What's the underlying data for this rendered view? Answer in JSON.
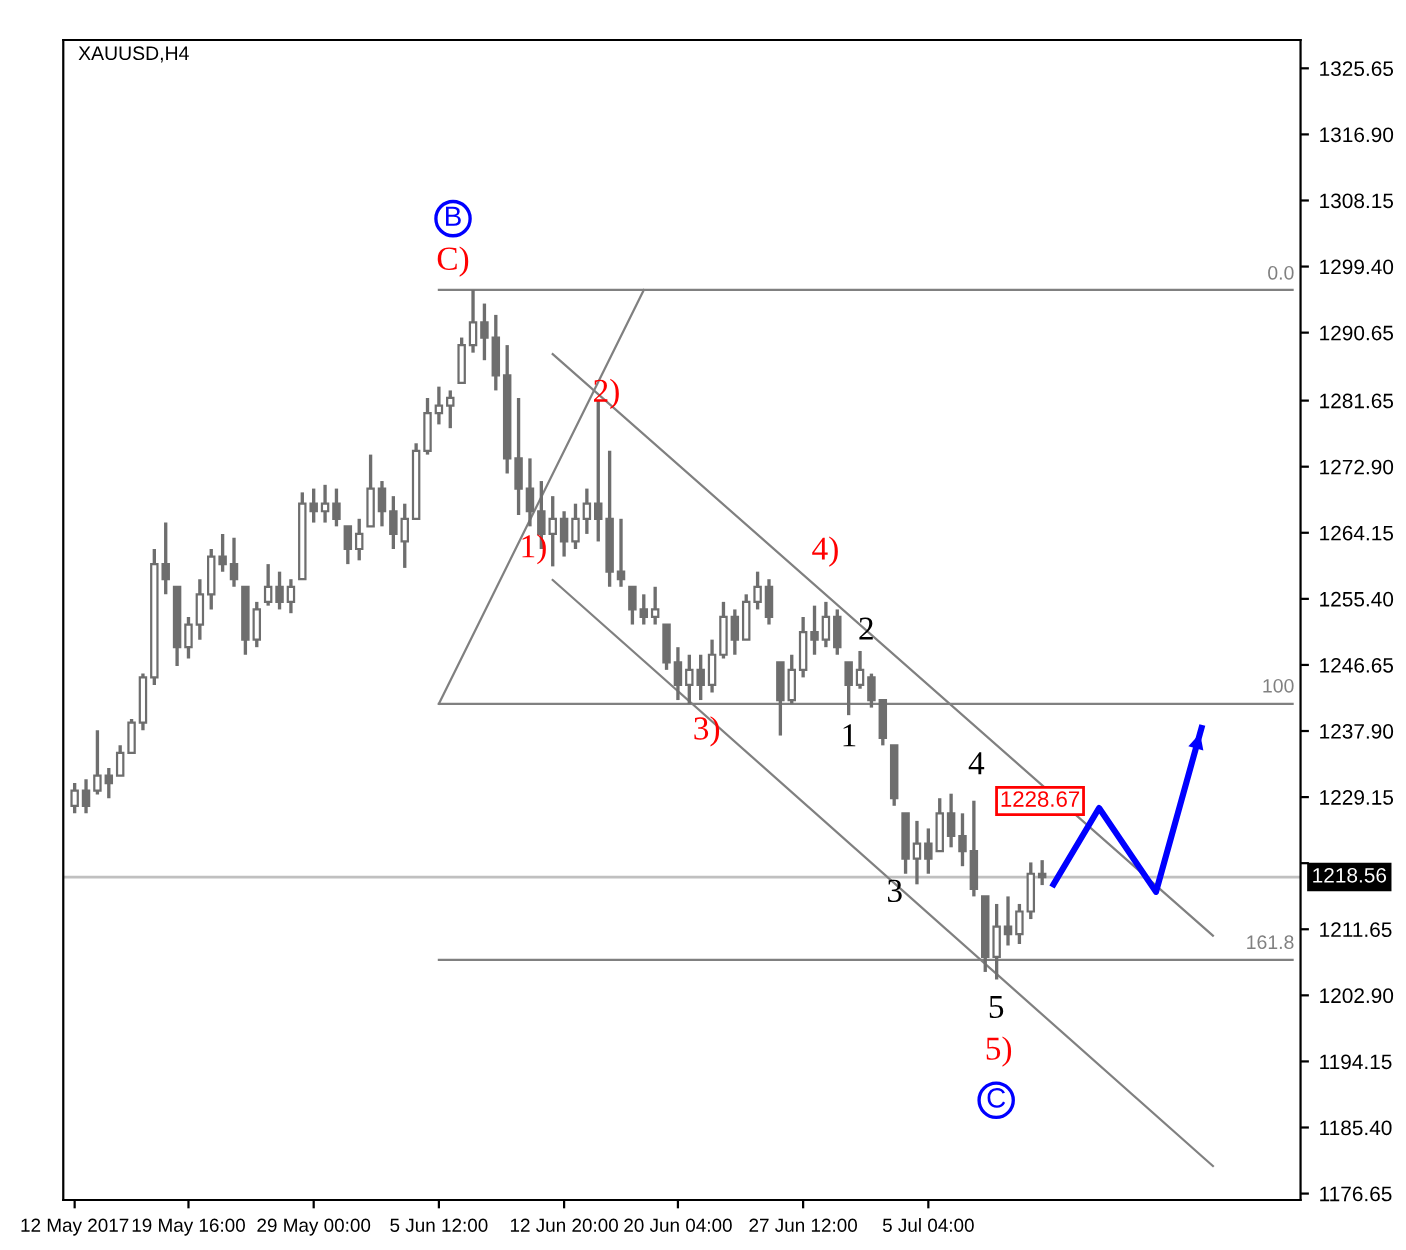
{
  "chart_data": {
    "type": "candlestick",
    "title": "XAUUSD,H4",
    "categories": [
      "12 May 2017",
      null,
      null,
      null,
      null,
      null,
      null,
      null,
      null,
      null,
      "19 May 16:00",
      null,
      null,
      null,
      null,
      null,
      null,
      null,
      null,
      null,
      null,
      "29 May 00:00",
      null,
      null,
      null,
      null,
      null,
      null,
      null,
      null,
      null,
      null,
      "5 Jun 12:00",
      null,
      null,
      null,
      null,
      null,
      null,
      null,
      null,
      null,
      null,
      "12 Jun 20:00",
      null,
      null,
      null,
      null,
      null,
      null,
      null,
      null,
      null,
      "20 Jun 04:00",
      null,
      null,
      null,
      null,
      null,
      null,
      null,
      null,
      null,
      null,
      "27 Jun 12:00",
      null,
      null,
      null,
      null,
      null,
      null,
      null,
      null,
      null,
      null,
      "5 Jul 04:00",
      null,
      null,
      null,
      null,
      null,
      null,
      null,
      null,
      null,
      null,
      null,
      null,
      null,
      null,
      null,
      null,
      null,
      null,
      null,
      null,
      null,
      null,
      null,
      null,
      null,
      null,
      null,
      null,
      null,
      null,
      null,
      null
    ],
    "ohlc": [
      [
        1228,
        1231,
        1227,
        1230
      ],
      [
        1230,
        1231.5,
        1227,
        1228
      ],
      [
        1230,
        1238,
        1229.5,
        1232
      ],
      [
        1232,
        1233,
        1229,
        1231
      ],
      [
        1232,
        1236,
        1232,
        1235
      ],
      [
        1235,
        1239.5,
        1235,
        1239
      ],
      [
        1239,
        1245.5,
        1238,
        1245
      ],
      [
        1245,
        1262,
        1244,
        1260
      ],
      [
        1260,
        1265.5,
        1256,
        1258
      ],
      [
        1257,
        1257,
        1246.5,
        1249
      ],
      [
        1249,
        1253,
        1247.5,
        1252
      ],
      [
        1252,
        1258,
        1250,
        1256
      ],
      [
        1256,
        1262,
        1254,
        1261
      ],
      [
        1261,
        1264,
        1259,
        1260
      ],
      [
        1260,
        1263.5,
        1257,
        1258
      ],
      [
        1257,
        1257,
        1248,
        1250
      ],
      [
        1250,
        1255,
        1249,
        1254
      ],
      [
        1255,
        1260,
        1254.5,
        1257
      ],
      [
        1257,
        1259,
        1254,
        1255
      ],
      [
        1255,
        1258,
        1253.5,
        1257
      ],
      [
        1258,
        1269.5,
        1258,
        1268
      ],
      [
        1268,
        1270,
        1265.5,
        1267
      ],
      [
        1267,
        1270.5,
        1265.5,
        1268
      ],
      [
        1268,
        1270,
        1265,
        1266
      ],
      [
        1265,
        1265,
        1260,
        1262
      ],
      [
        1262,
        1266,
        1260.5,
        1264
      ],
      [
        1265,
        1274.5,
        1265,
        1270
      ],
      [
        1270,
        1271,
        1265,
        1267
      ],
      [
        1267,
        1269,
        1262,
        1264
      ],
      [
        1263,
        1268,
        1259.5,
        1266
      ],
      [
        1266,
        1276,
        1266,
        1275
      ],
      [
        1275,
        1282,
        1274.5,
        1280
      ],
      [
        1280,
        1283.5,
        1278.5,
        1281
      ],
      [
        1281,
        1283,
        1278,
        1282
      ],
      [
        1284,
        1290,
        1284,
        1289
      ],
      [
        1289,
        1296.3,
        1288,
        1292
      ],
      [
        1292,
        1294.5,
        1287,
        1290
      ],
      [
        1290,
        1293,
        1283,
        1285
      ],
      [
        1285,
        1289,
        1272,
        1274
      ],
      [
        1274,
        1282,
        1266.5,
        1270
      ],
      [
        1270,
        1274,
        1265,
        1267
      ],
      [
        1267,
        1271,
        1262,
        1264
      ],
      [
        1264,
        1269,
        1259.7,
        1266
      ],
      [
        1266,
        1267,
        1261,
        1263
      ],
      [
        1263,
        1268,
        1262,
        1266
      ],
      [
        1266,
        1270,
        1264,
        1268
      ],
      [
        1268,
        1281.7,
        1263,
        1266
      ],
      [
        1266,
        1275,
        1257,
        1259
      ],
      [
        1259,
        1266,
        1257,
        1258
      ],
      [
        1257,
        1257,
        1252,
        1254
      ],
      [
        1254,
        1256,
        1252,
        1253
      ],
      [
        1253,
        1257,
        1252,
        1254
      ],
      [
        1252,
        1252,
        1246,
        1247
      ],
      [
        1247,
        1249,
        1242,
        1244
      ],
      [
        1244,
        1248,
        1241.5,
        1246
      ],
      [
        1246,
        1248,
        1242,
        1244
      ],
      [
        1244,
        1250,
        1243,
        1248
      ],
      [
        1248,
        1255,
        1247.5,
        1253
      ],
      [
        1253,
        1254,
        1248,
        1250
      ],
      [
        1250,
        1256,
        1250,
        1255
      ],
      [
        1255,
        1259,
        1254,
        1257
      ],
      [
        1257,
        1258,
        1252,
        1253
      ],
      [
        1247,
        1247,
        1237.3,
        1242
      ],
      [
        1242,
        1248,
        1241.5,
        1246
      ],
      [
        1246,
        1253,
        1245,
        1251
      ],
      [
        1251,
        1254.5,
        1248,
        1250
      ],
      [
        1250,
        1255,
        1249,
        1253
      ],
      [
        1253,
        1254,
        1248,
        1249
      ],
      [
        1247,
        1247,
        1240,
        1244
      ],
      [
        1244,
        1248.5,
        1243.5,
        1246
      ],
      [
        1245,
        1245.5,
        1241,
        1242
      ],
      [
        1242,
        1242,
        1236,
        1237
      ],
      [
        1236,
        1236,
        1228,
        1229
      ],
      [
        1227,
        1227,
        1219,
        1221
      ],
      [
        1221,
        1226,
        1217.6,
        1223
      ],
      [
        1223,
        1225,
        1219,
        1221
      ],
      [
        1222,
        1229,
        1222,
        1227
      ],
      [
        1227,
        1229.6,
        1222.5,
        1224
      ],
      [
        1224,
        1227,
        1220,
        1222
      ],
      [
        1222,
        1228.67,
        1216,
        1217
      ],
      [
        1216,
        1216,
        1206,
        1208
      ],
      [
        1208,
        1215,
        1205,
        1212
      ],
      [
        1212,
        1216,
        1209.5,
        1211
      ],
      [
        1211,
        1215,
        1209.7,
        1214
      ],
      [
        1214,
        1220.5,
        1213,
        1219
      ],
      [
        1219,
        1220.8,
        1217.5,
        1218.56
      ],
      null,
      null,
      null,
      null,
      null,
      null,
      null,
      null,
      null,
      null,
      null,
      null,
      null,
      null,
      null,
      null,
      null,
      null,
      null,
      null,
      null,
      null
    ],
    "color": "#6e6e6e",
    "series": [
      {
        "type": "line",
        "color": "#808080",
        "values": [
          null,
          null,
          null,
          null,
          null,
          null,
          null,
          null,
          null,
          null,
          null,
          null,
          null,
          null,
          null,
          null,
          null,
          null,
          null,
          null,
          null,
          null,
          null,
          null,
          null,
          null,
          null,
          null,
          null,
          null,
          null,
          null,
          1296.3,
          null,
          null,
          null,
          null,
          null,
          null,
          null,
          null,
          null,
          null,
          null,
          null,
          null,
          null,
          null,
          null,
          null,
          null,
          null,
          null,
          null,
          null,
          null,
          null,
          null,
          null,
          null,
          null,
          null,
          null,
          null,
          null,
          null,
          null,
          null,
          null,
          null,
          null,
          null,
          null,
          null,
          null,
          null,
          null,
          null,
          null,
          null,
          null,
          null,
          null,
          null,
          null,
          null,
          null,
          null,
          null,
          null,
          null,
          null,
          null,
          null,
          null,
          null,
          null,
          null,
          null,
          null,
          null,
          null,
          null,
          null,
          null,
          null,
          null,
          1296.3
        ]
      },
      {
        "type": "line",
        "color": "#808080",
        "values": [
          null,
          null,
          null,
          null,
          null,
          null,
          null,
          null,
          null,
          null,
          null,
          null,
          null,
          null,
          null,
          null,
          null,
          null,
          null,
          null,
          null,
          null,
          null,
          null,
          null,
          null,
          null,
          null,
          null,
          null,
          null,
          null,
          1241.5,
          null,
          null,
          null,
          null,
          null,
          null,
          null,
          null,
          null,
          null,
          null,
          null,
          null,
          null,
          null,
          null,
          null,
          null,
          null,
          null,
          null,
          null,
          null,
          null,
          null,
          null,
          null,
          null,
          null,
          null,
          null,
          null,
          null,
          null,
          null,
          null,
          null,
          null,
          null,
          null,
          null,
          null,
          null,
          null,
          null,
          null,
          null,
          null,
          null,
          null,
          null,
          null,
          null,
          null,
          null,
          null,
          null,
          null,
          null,
          null,
          null,
          null,
          null,
          null,
          null,
          null,
          null,
          null,
          null,
          null,
          null,
          null,
          null,
          null,
          1241.5
        ]
      },
      {
        "type": "line",
        "color": "#808080",
        "values": [
          null,
          null,
          null,
          null,
          null,
          null,
          null,
          null,
          null,
          null,
          null,
          null,
          null,
          null,
          null,
          null,
          null,
          null,
          null,
          null,
          null,
          null,
          null,
          null,
          null,
          null,
          null,
          null,
          null,
          null,
          null,
          null,
          1207.6,
          null,
          null,
          null,
          null,
          null,
          null,
          null,
          null,
          null,
          null,
          null,
          null,
          null,
          null,
          null,
          null,
          null,
          null,
          null,
          null,
          null,
          null,
          null,
          null,
          null,
          null,
          null,
          null,
          null,
          null,
          null,
          null,
          null,
          null,
          null,
          null,
          null,
          null,
          null,
          null,
          null,
          null,
          null,
          null,
          null,
          null,
          null,
          null,
          null,
          null,
          null,
          null,
          null,
          null,
          null,
          null,
          null,
          null,
          null,
          null,
          null,
          null,
          null,
          null,
          null,
          null,
          null,
          null,
          null,
          null,
          null,
          null,
          null,
          null,
          1207.6
        ]
      },
      {
        "type": "line",
        "color": "#808080",
        "values": [
          null,
          null,
          null,
          null,
          null,
          null,
          null,
          null,
          null,
          null,
          null,
          null,
          null,
          null,
          null,
          null,
          null,
          null,
          null,
          null,
          null,
          null,
          null,
          null,
          null,
          null,
          null,
          null,
          null,
          null,
          null,
          null,
          1241.5,
          null,
          null,
          null,
          null,
          null,
          null,
          null,
          null,
          null,
          null,
          null,
          null,
          null,
          null,
          null,
          null,
          null,
          1296.3,
          null,
          null,
          null,
          null,
          null,
          null,
          null,
          null,
          null,
          null,
          null,
          null,
          null,
          null,
          null,
          null,
          null,
          null,
          null,
          null,
          null,
          null,
          null,
          null,
          null,
          null,
          null,
          null,
          null,
          null,
          null,
          null,
          null,
          null,
          null,
          null,
          null,
          null,
          null,
          null,
          null,
          null,
          null,
          null,
          null,
          null,
          null,
          null,
          null,
          null,
          null,
          null,
          null,
          null,
          null,
          null,
          null
        ]
      },
      {
        "type": "line",
        "color": "#808080",
        "values": [
          null,
          null,
          null,
          null,
          null,
          null,
          null,
          null,
          null,
          null,
          null,
          null,
          null,
          null,
          null,
          null,
          null,
          null,
          null,
          null,
          null,
          null,
          null,
          null,
          null,
          null,
          null,
          null,
          null,
          null,
          null,
          null,
          null,
          null,
          null,
          null,
          null,
          null,
          null,
          null,
          null,
          null,
          1287.8,
          null,
          null,
          null,
          null,
          null,
          null,
          null,
          null,
          null,
          null,
          null,
          null,
          null,
          null,
          null,
          null,
          null,
          null,
          null,
          null,
          null,
          null,
          null,
          null,
          null,
          null,
          null,
          null,
          null,
          null,
          null,
          null,
          null,
          null,
          null,
          null,
          null,
          null,
          null,
          null,
          null,
          null,
          null,
          null,
          null,
          null,
          null,
          null,
          null,
          null,
          null,
          null,
          null,
          null,
          null,
          null,
          null,
          1210.8,
          null,
          null,
          null,
          null,
          null,
          null,
          null
        ]
      },
      {
        "type": "line",
        "color": "#808080",
        "values": [
          null,
          null,
          null,
          null,
          null,
          null,
          null,
          null,
          null,
          null,
          null,
          null,
          null,
          null,
          null,
          null,
          null,
          null,
          null,
          null,
          null,
          null,
          null,
          null,
          null,
          null,
          null,
          null,
          null,
          null,
          null,
          null,
          null,
          null,
          null,
          null,
          null,
          null,
          null,
          null,
          null,
          null,
          1257.9,
          null,
          null,
          null,
          null,
          null,
          null,
          null,
          null,
          null,
          null,
          null,
          null,
          null,
          null,
          null,
          null,
          null,
          null,
          null,
          null,
          null,
          null,
          null,
          null,
          null,
          null,
          null,
          null,
          null,
          null,
          null,
          null,
          null,
          null,
          null,
          null,
          null,
          null,
          null,
          null,
          null,
          null,
          null,
          null,
          null,
          null,
          null,
          null,
          null,
          null,
          null,
          null,
          null,
          null,
          null,
          null,
          null,
          1180.3,
          null,
          null,
          null,
          null,
          null,
          null,
          null
        ]
      },
      {
        "type": "line",
        "color": "#0000ff",
        "values": [
          null,
          null,
          null,
          null,
          null,
          null,
          null,
          null,
          null,
          null,
          null,
          null,
          null,
          null,
          null,
          null,
          null,
          null,
          null,
          null,
          null,
          null,
          null,
          null,
          null,
          null,
          null,
          null,
          null,
          null,
          null,
          null,
          null,
          null,
          null,
          null,
          null,
          null,
          null,
          null,
          null,
          null,
          null,
          null,
          null,
          null,
          null,
          null,
          null,
          null,
          null,
          null,
          null,
          null,
          null,
          null,
          null,
          null,
          null,
          null,
          null,
          null,
          null,
          null,
          null,
          null,
          null,
          null,
          null,
          null,
          null,
          null,
          null,
          null,
          null,
          null,
          null,
          null,
          null,
          null,
          null,
          null,
          null,
          null,
          null,
          null,
          1217.6,
          null,
          null,
          null,
          1227.7,
          null,
          null,
          null,
          null,
          1216.6,
          null,
          null,
          null,
          1238.3,
          null,
          null,
          null,
          null,
          null,
          null,
          null,
          null
        ]
      }
    ],
    "ref_lines": [
      {
        "axis": "y",
        "value": 1218.56,
        "label": "1218.56",
        "color": "#c0c0c0"
      }
    ],
    "annotations": [
      "B",
      "C)",
      "1)",
      "2)",
      "3)",
      "4)",
      "1",
      "2",
      "3",
      "4",
      "5",
      "5)",
      "C",
      "1228.67",
      "0.0",
      "100",
      "161.8"
    ],
    "ylim": [
      1175.8,
      1329.4
    ],
    "yticks": [
      1325.65,
      {
        "value": 1316.9,
        "label": "1316.90"
      },
      1308.15,
      {
        "value": 1299.4,
        "label": "1299.40"
      },
      1290.65,
      1281.65,
      {
        "value": 1272.9,
        "label": "1272.90"
      },
      1264.15,
      {
        "value": 1255.4,
        "label": "1255.40"
      },
      1246.65,
      {
        "value": 1237.9,
        "label": "1237.90"
      },
      1229.15,
      {
        "value": 1220.4,
        "label": null
      },
      1211.65,
      {
        "value": 1202.9,
        "label": "1202.90"
      },
      1194.15,
      {
        "value": 1185.4,
        "label": "1185.40"
      },
      1176.65
    ],
    "grid": false
  }
}
